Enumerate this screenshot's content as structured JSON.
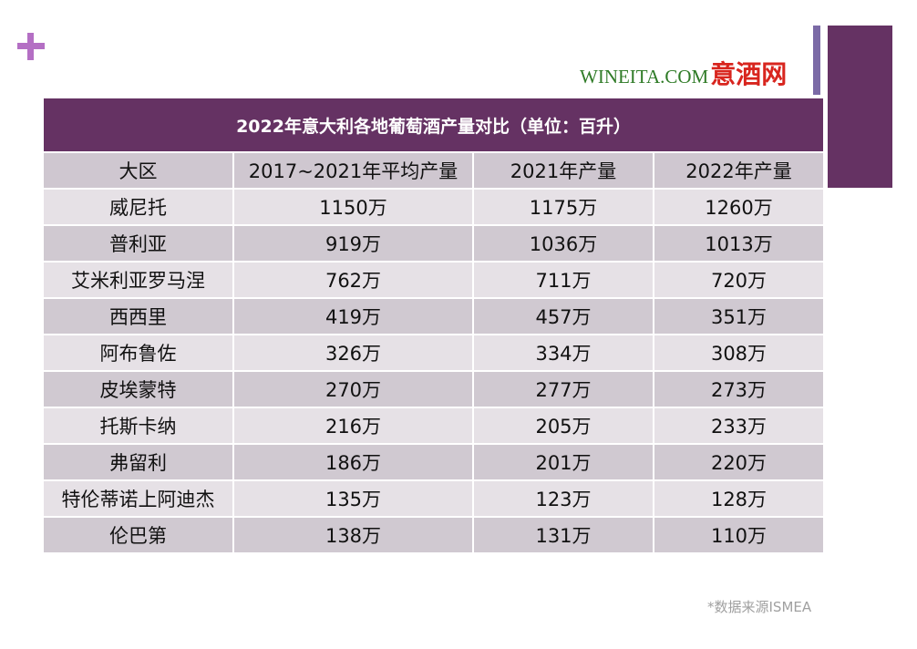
{
  "logo": {
    "en": "WINEITA.COM",
    "cn": "意酒网"
  },
  "table": {
    "title": "2022年意大利各地葡萄酒产量对比（单位：百升）",
    "headers": [
      "大区",
      "2017~2021年平均产量",
      "2021年产量",
      "2022年产量"
    ],
    "rows": [
      [
        "威尼托",
        "1150万",
        "1175万",
        "1260万"
      ],
      [
        "普利亚",
        "919万",
        "1036万",
        "1013万"
      ],
      [
        "艾米利亚罗马涅",
        "762万",
        "711万",
        "720万"
      ],
      [
        "西西里",
        "419万",
        "457万",
        "351万"
      ],
      [
        "阿布鲁佐",
        "326万",
        "334万",
        "308万"
      ],
      [
        "皮埃蒙特",
        "270万",
        "277万",
        "273万"
      ],
      [
        "托斯卡纳",
        "216万",
        "205万",
        "233万"
      ],
      [
        "弗留利",
        "186万",
        "201万",
        "220万"
      ],
      [
        "特伦蒂诺上阿迪杰",
        "135万",
        "123万",
        "128万"
      ],
      [
        "伦巴第",
        "138万",
        "131万",
        "110万"
      ]
    ]
  },
  "source_note": "*数据来源ISMEA",
  "colors": {
    "title_bg": "#653263",
    "header_bg": "#cfc7d0",
    "row_light": "#e6e1e6",
    "row_dark": "#d0c9d1",
    "plus_icon": "#b46fc4",
    "accent_bar": "#7b6aa6"
  }
}
